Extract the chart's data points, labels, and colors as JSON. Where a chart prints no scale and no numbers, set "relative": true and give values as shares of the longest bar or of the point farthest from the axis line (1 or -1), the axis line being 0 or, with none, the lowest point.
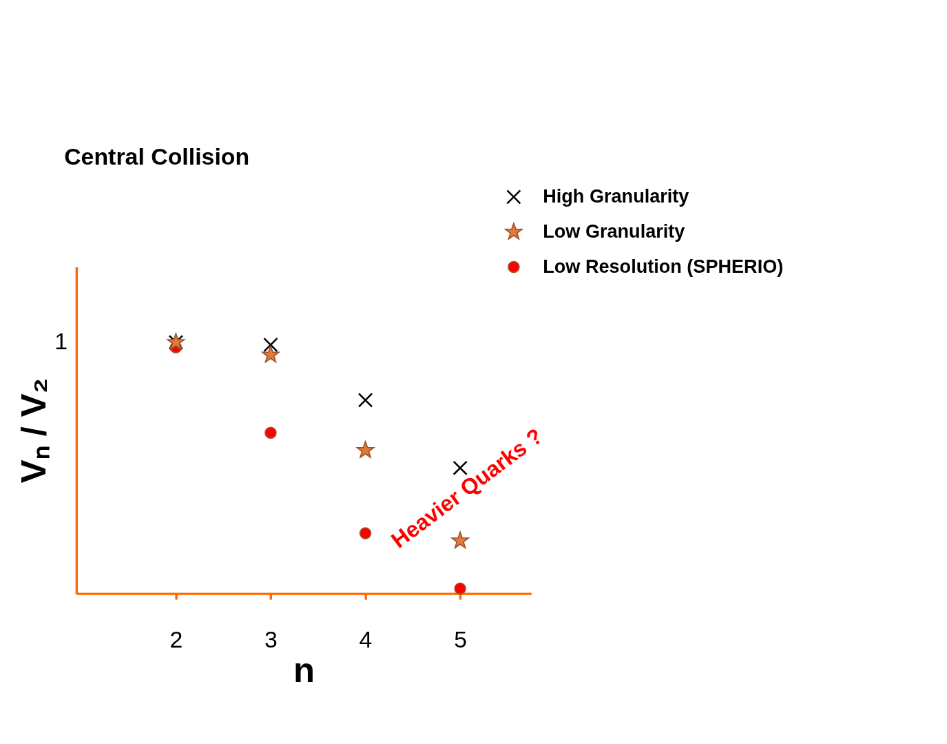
{
  "chart_data": {
    "type": "scatter",
    "title": "Central Collision",
    "xlabel": "n",
    "ylabel": "Vₙ / V₂",
    "relative": true,
    "x": [
      2,
      3,
      4,
      5
    ],
    "xlim": [
      0.95,
      5.75
    ],
    "xticks": [
      2,
      3,
      4,
      5
    ],
    "legend": "top right",
    "grid": false,
    "series": [
      {
        "name": "High Granularity",
        "color": "#000000",
        "marker": "cross",
        "values": [
          1.0,
          0.99,
          0.77,
          0.5
        ]
      },
      {
        "name": "Low Granularity",
        "color": "#e07b39",
        "marker": "star",
        "values": [
          1.0,
          0.95,
          0.57,
          0.21
        ]
      },
      {
        "name": "Low Resolution (SPHERIO)",
        "color": "#ff0000",
        "marker": "circle",
        "values": [
          0.98,
          0.64,
          0.24,
          0.02
        ]
      }
    ],
    "annotations": [
      "1",
      "Heavier Quarks ?"
    ]
  }
}
